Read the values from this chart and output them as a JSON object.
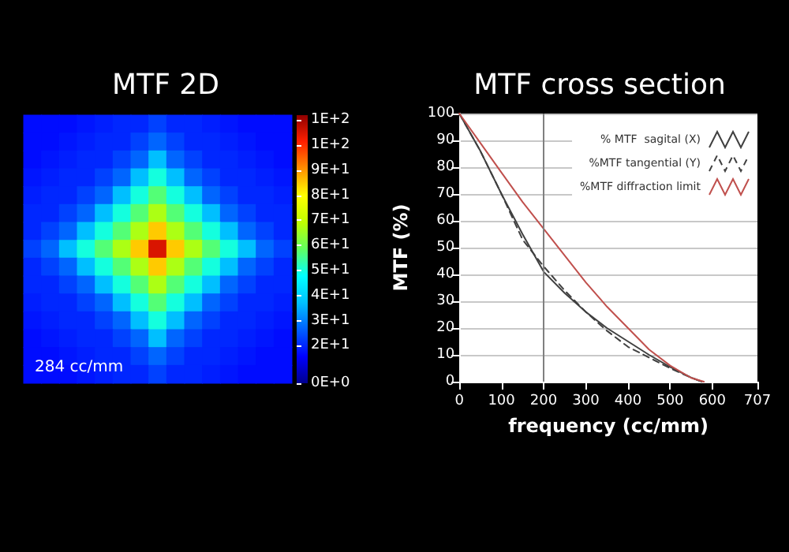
{
  "chart_data": [
    {
      "type": "heatmap",
      "title": "MTF 2D",
      "categories": [
        null,
        null,
        null,
        null,
        null,
        null,
        null,
        null,
        null,
        null,
        null,
        null,
        null,
        null,
        null
      ],
      "y_categories": [
        null,
        null,
        null,
        null,
        null,
        null,
        null,
        null,
        null,
        null,
        null,
        null,
        null,
        null,
        null
      ],
      "cells": [
        [
          12,
          12,
          12,
          13,
          14,
          15,
          15,
          18,
          15,
          15,
          14,
          13,
          12,
          12,
          12
        ],
        [
          12,
          12,
          13,
          14,
          15,
          15,
          18,
          22,
          18,
          15,
          15,
          14,
          13,
          12,
          12
        ],
        [
          12,
          13,
          14,
          15,
          15,
          18,
          22,
          32,
          22,
          18,
          15,
          15,
          14,
          13,
          12
        ],
        [
          13,
          14,
          15,
          15,
          18,
          22,
          32,
          45,
          32,
          22,
          18,
          15,
          15,
          14,
          13
        ],
        [
          14,
          15,
          15,
          18,
          22,
          32,
          45,
          52,
          45,
          32,
          22,
          18,
          15,
          15,
          14
        ],
        [
          15,
          15,
          18,
          22,
          32,
          45,
          52,
          62,
          52,
          45,
          32,
          22,
          18,
          15,
          15
        ],
        [
          15,
          18,
          22,
          32,
          45,
          52,
          62,
          80,
          62,
          52,
          45,
          32,
          22,
          18,
          15
        ],
        [
          18,
          22,
          32,
          45,
          52,
          62,
          80,
          100,
          80,
          62,
          52,
          45,
          32,
          22,
          18
        ],
        [
          15,
          18,
          22,
          32,
          45,
          52,
          62,
          80,
          62,
          52,
          45,
          32,
          22,
          18,
          15
        ],
        [
          15,
          15,
          18,
          22,
          32,
          45,
          52,
          62,
          52,
          45,
          32,
          22,
          18,
          15,
          15
        ],
        [
          14,
          15,
          15,
          18,
          22,
          32,
          45,
          52,
          45,
          32,
          22,
          18,
          15,
          15,
          14
        ],
        [
          13,
          14,
          15,
          15,
          18,
          22,
          32,
          45,
          32,
          22,
          18,
          15,
          15,
          14,
          13
        ],
        [
          12,
          13,
          14,
          15,
          15,
          18,
          22,
          32,
          22,
          18,
          15,
          15,
          14,
          13,
          12
        ],
        [
          12,
          12,
          13,
          14,
          15,
          15,
          18,
          22,
          18,
          15,
          15,
          14,
          13,
          12,
          12
        ],
        [
          12,
          12,
          12,
          13,
          14,
          15,
          15,
          18,
          15,
          15,
          14,
          13,
          12,
          12,
          12
        ]
      ],
      "clim": [
        0,
        107
      ],
      "cticks": [
        {
          "value": 0,
          "label": "0E+0"
        },
        {
          "value": 15,
          "label": "2E+1"
        },
        {
          "value": 25,
          "label": "3E+1"
        },
        {
          "value": 35,
          "label": "4E+1"
        },
        {
          "value": 45,
          "label": "5E+1"
        },
        {
          "value": 55,
          "label": "6E+1"
        },
        {
          "value": 65,
          "label": "7E+1"
        },
        {
          "value": 75,
          "label": "8E+1"
        },
        {
          "value": 85,
          "label": "9E+1"
        },
        {
          "value": 95,
          "label": "1E+2"
        },
        {
          "value": 105,
          "label": "1E+2"
        }
      ],
      "annotations": [
        "284 cc/mm"
      ]
    },
    {
      "type": "line",
      "title": "MTF cross section",
      "xlabel": "frequency (cc/mm)",
      "ylabel": "MTF (%)",
      "xlim": [
        0,
        707
      ],
      "xticks": [
        0,
        100,
        200,
        300,
        400,
        500,
        600,
        707
      ],
      "ylim": [
        0,
        100
      ],
      "yticks": [
        0,
        10,
        20,
        30,
        40,
        50,
        60,
        70,
        80,
        90,
        100
      ],
      "grid": "y",
      "legend": "top right",
      "marker": "none",
      "ref_lines": [
        {
          "axis": "x",
          "value": 200,
          "label": null,
          "color": "#808080"
        }
      ],
      "series": [
        {
          "name": "% MTF  sagital (X)",
          "color": "#404040",
          "line_style": "solid",
          "x": [
            0,
            50,
            100,
            150,
            200,
            250,
            300,
            350,
            400,
            450,
            500,
            550,
            575
          ],
          "values": [
            100,
            86,
            70,
            55,
            41,
            33,
            26,
            20,
            15,
            10,
            5.5,
            1.5,
            0
          ]
        },
        {
          "name": "%MTF tangential (Y)",
          "color": "#404040",
          "line_style": "dashed",
          "x": [
            0,
            50,
            100,
            150,
            200,
            250,
            300,
            350,
            400,
            450,
            500,
            550,
            575
          ],
          "values": [
            100,
            86,
            70,
            53,
            43,
            34,
            26,
            19,
            13,
            9,
            5,
            1.5,
            0
          ]
        },
        {
          "name": "%MTF diffraction limit",
          "color": "#c0504d",
          "line_style": "solid",
          "x": [
            0,
            50,
            100,
            150,
            200,
            250,
            300,
            350,
            400,
            450,
            500,
            550,
            580
          ],
          "values": [
            100,
            89,
            78,
            67,
            57,
            47,
            37,
            28,
            20,
            12,
            6,
            1.4,
            0
          ]
        }
      ]
    }
  ]
}
